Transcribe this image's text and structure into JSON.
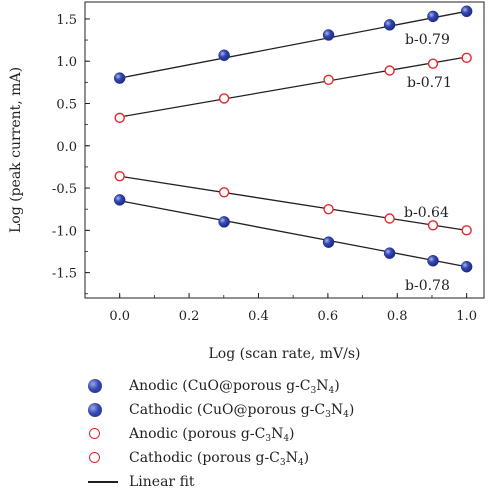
{
  "chart_data": {
    "type": "scatter",
    "xlabel": "Log (scan rate, mV/s)",
    "ylabel": "Log (peak current, mA)",
    "xlim": [
      -0.1,
      1.05
    ],
    "ylim": [
      -1.8,
      1.7
    ],
    "xticks": [
      "0.0",
      "0.2",
      "0.4",
      "0.6",
      "0.8",
      "1.0"
    ],
    "yticks": [
      "-1.5",
      "-1.0",
      "-0.5",
      "0.0",
      "0.5",
      "1.0",
      "1.5"
    ],
    "xtick_values": [
      0.0,
      0.2,
      0.4,
      0.6,
      0.8,
      1.0
    ],
    "ytick_values": [
      -1.5,
      -1.0,
      -0.5,
      0.0,
      0.5,
      1.0,
      1.5
    ],
    "grid": false,
    "legend_position": "bottom",
    "series": [
      {
        "name": "Anodic (CuO@porous g-C3N4)",
        "legend_main": "Anodic (CuO@porous g-C",
        "legend_sub1": "3",
        "legend_mid": "N",
        "legend_sub2": "4",
        "legend_end": ")",
        "marker": "filled",
        "color": "#2a3b9e",
        "x": [
          0.0,
          0.301,
          0.602,
          0.778,
          0.903,
          1.0
        ],
        "y": [
          0.8,
          1.07,
          1.31,
          1.43,
          1.53,
          1.59
        ],
        "fit": [
          [
            0.0,
            0.8
          ],
          [
            1.0,
            1.59
          ]
        ],
        "annotation": "b-0.79"
      },
      {
        "name": "Cathodic (CuO@porous g-C3N4)",
        "legend_main": "Cathodic (CuO@porous g-C",
        "legend_sub1": "3",
        "legend_mid": "N",
        "legend_sub2": "4",
        "legend_end": ")",
        "marker": "filled",
        "color": "#2a3b9e",
        "x": [
          0.0,
          0.301,
          0.602,
          0.778,
          0.903,
          1.0
        ],
        "y": [
          -0.64,
          -0.9,
          -1.14,
          -1.27,
          -1.36,
          -1.43
        ],
        "fit": [
          [
            0.0,
            -0.65
          ],
          [
            1.0,
            -1.43
          ]
        ],
        "annotation": "b-0.78"
      },
      {
        "name": "Anodic (porous g-C3N4)",
        "legend_main": "Anodic (porous g-C",
        "legend_sub1": "3",
        "legend_mid": "N",
        "legend_sub2": "4",
        "legend_end": ")",
        "marker": "open",
        "color": "#e8262b",
        "x": [
          0.0,
          0.301,
          0.602,
          0.778,
          0.903,
          1.0
        ],
        "y": [
          0.33,
          0.56,
          0.78,
          0.89,
          0.97,
          1.04
        ],
        "fit": [
          [
            0.0,
            0.34
          ],
          [
            1.0,
            1.05
          ]
        ],
        "annotation": "b-0.71"
      },
      {
        "name": "Cathodic (porous g-C3N4)",
        "legend_main": "Cathodic (porous g-C",
        "legend_sub1": "3",
        "legend_mid": "N",
        "legend_sub2": "4",
        "legend_end": ")",
        "marker": "open",
        "color": "#e8262b",
        "x": [
          0.0,
          0.301,
          0.602,
          0.778,
          0.903,
          1.0
        ],
        "y": [
          -0.36,
          -0.55,
          -0.75,
          -0.86,
          -0.94,
          -1.0
        ],
        "fit": [
          [
            0.0,
            -0.36
          ],
          [
            1.0,
            -1.0
          ]
        ],
        "annotation": "b-0.64"
      }
    ],
    "fit_legend": "Linear fit"
  }
}
